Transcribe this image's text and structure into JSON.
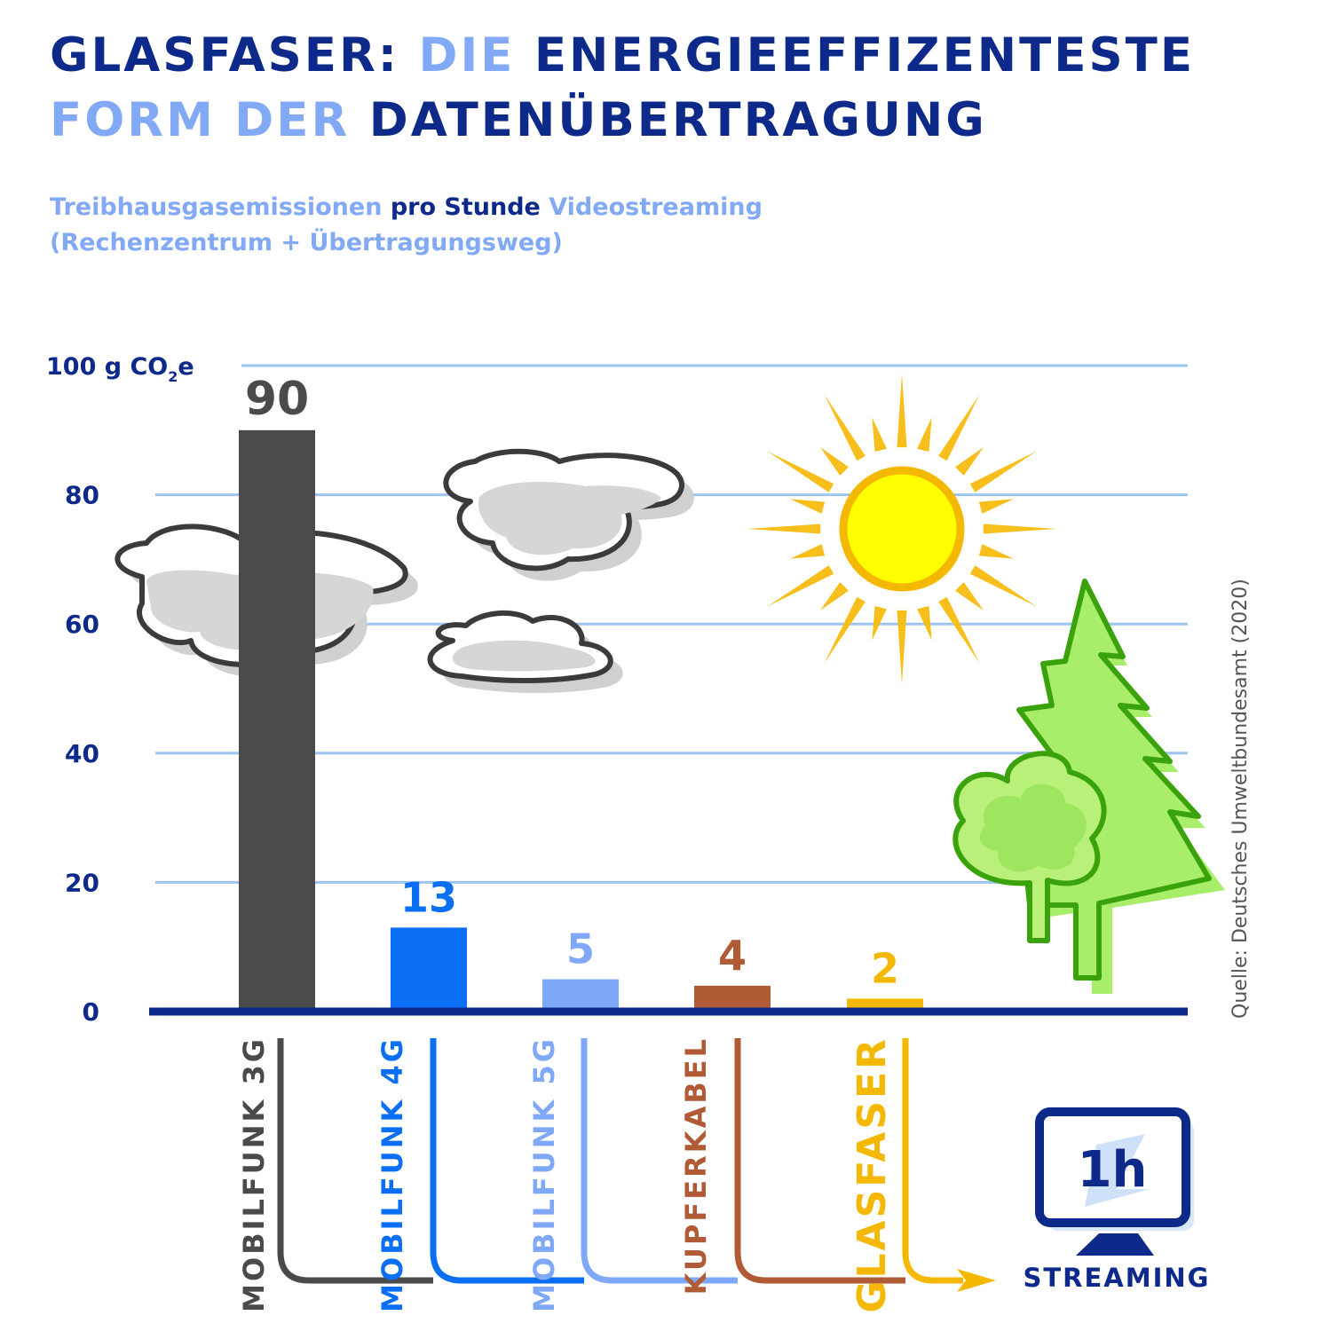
{
  "header": {
    "title_line1_a": "GLASFASER:",
    "title_line1_b": "DIE",
    "title_line1_c": "ENERGIEEFFIZENTESTE",
    "title_line2_a": "FORM DER",
    "title_line2_b": "DATENÜBERTRAGUNG",
    "subtitle_line1_a": "Treibhausgasemissionen",
    "subtitle_line1_b": "pro Stunde",
    "subtitle_line1_c": "Videostreaming",
    "subtitle_line2": "(Rechenzentrum + Übertragungsweg)"
  },
  "colors": {
    "dark_blue": "#0d2a8a",
    "light_blue": "#82a9f5",
    "grid": "#9cc5f2",
    "mobilfunk_3g": "#4a4a4a",
    "mobilfunk_4g": "#0a6ff5",
    "mobilfunk_5g": "#80a8f8",
    "kupferkabel": "#b05a36",
    "glasfaser": "#f5b800"
  },
  "source": "Quelle: Deutsches Umweltbundesamt (2020)",
  "streaming": {
    "monitor_text": "1h",
    "label": "STREAMING",
    "icon": "monitor-icon"
  },
  "decorations": [
    "cloud-icon",
    "cloud-icon",
    "cloud-icon",
    "sun-icon",
    "fir-tree-icon",
    "deciduous-tree-icon"
  ],
  "chart_data": {
    "type": "bar",
    "y_unit_label": {
      "prefix": "100 g CO",
      "sub": "2",
      "suffix": "e"
    },
    "y_ticks": [
      "0",
      "20",
      "40",
      "60",
      "80"
    ],
    "ylim": [
      0,
      100
    ],
    "grid": true,
    "categories": [
      "MOBILFUNK 3G",
      "MOBILFUNK 4G",
      "MOBILFUNK 5G",
      "KUPFERKABEL",
      "GLASFASER"
    ],
    "values": [
      90,
      13,
      5,
      4,
      2
    ],
    "value_labels": [
      "90",
      "13",
      "5",
      "4",
      "2"
    ]
  }
}
